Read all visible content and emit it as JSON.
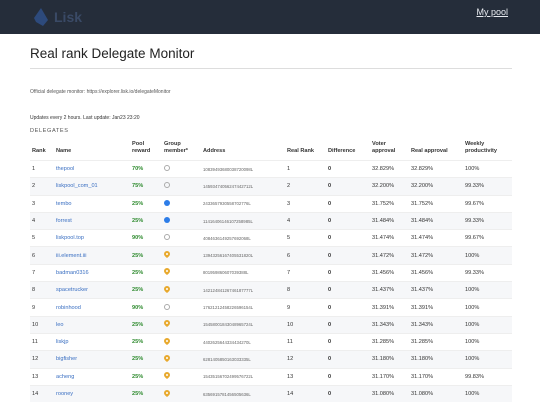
{
  "header": {
    "logo_text": "Lisk",
    "my_pool_label": "My pool"
  },
  "page": {
    "title": "Real rank Delegate Monitor",
    "official_text": "Official delegate monitor: https://explorer.lisk.io/delegateMonitor",
    "updates_text": "Updates every 2 hours. Last update: Jan23 23:20",
    "section_label": "DELEGATES"
  },
  "table": {
    "columns": [
      "Rank",
      "Name",
      "Pool reward",
      "Group member*",
      "Address",
      "Real Rank",
      "Difference",
      "Voter approval",
      "Real approval",
      "Weekly productivity"
    ],
    "rows": [
      {
        "rank": "1",
        "name": "thepool",
        "reward": "70%",
        "group": "empty",
        "address": "10839493680038720098L",
        "real_rank": "1",
        "difference": "0",
        "approval": "32.829%",
        "real_approval": "32.829%",
        "productivity": "100%"
      },
      {
        "rank": "2",
        "name": "liskpool_com_01",
        "reward": "75%",
        "group": "empty",
        "address": "14593474056247442712L",
        "real_rank": "2",
        "difference": "0",
        "approval": "32.200%",
        "real_approval": "32.200%",
        "productivity": "99.33%"
      },
      {
        "rank": "3",
        "name": "tembo",
        "reward": "25%",
        "group": "blue",
        "address": "2433657930558702776L",
        "real_rank": "3",
        "difference": "0",
        "approval": "31.752%",
        "real_approval": "31.752%",
        "productivity": "99.67%"
      },
      {
        "rank": "4",
        "name": "forrest",
        "reward": "25%",
        "group": "blue",
        "address": "11416406146107258985L",
        "real_rank": "4",
        "difference": "0",
        "approval": "31.484%",
        "real_approval": "31.484%",
        "productivity": "99.33%"
      },
      {
        "rank": "5",
        "name": "liskpool.top",
        "reward": "90%",
        "group": "empty",
        "address": "4084636149257692068L",
        "real_rank": "5",
        "difference": "0",
        "approval": "31.474%",
        "real_approval": "31.474%",
        "productivity": "99.67%"
      },
      {
        "rank": "6",
        "name": "iii.element.iii",
        "reward": "25%",
        "group": "pin",
        "address": "13943256167405531820L",
        "real_rank": "6",
        "difference": "0",
        "approval": "31.472%",
        "real_approval": "31.472%",
        "productivity": "100%"
      },
      {
        "rank": "7",
        "name": "badman0316",
        "reward": "25%",
        "group": "pin",
        "address": "801959860607039388L",
        "real_rank": "7",
        "difference": "0",
        "approval": "31.456%",
        "real_approval": "31.456%",
        "productivity": "99.33%"
      },
      {
        "rank": "8",
        "name": "spacetrucker",
        "reward": "25%",
        "group": "pin",
        "address": "14212484126746187777L",
        "real_rank": "8",
        "difference": "0",
        "approval": "31.437%",
        "real_approval": "31.437%",
        "productivity": "100%"
      },
      {
        "rank": "9",
        "name": "robinhood",
        "reward": "90%",
        "group": "empty",
        "address": "17621212458226596154L",
        "real_rank": "9",
        "difference": "0",
        "approval": "31.391%",
        "real_approval": "31.391%",
        "productivity": "100%"
      },
      {
        "rank": "10",
        "name": "leo",
        "reward": "25%",
        "group": "pin",
        "address": "15458001843048965724L",
        "real_rank": "10",
        "difference": "0",
        "approval": "31.343%",
        "real_approval": "31.343%",
        "productivity": "100%"
      },
      {
        "rank": "11",
        "name": "liskjp",
        "reward": "25%",
        "group": "pin",
        "address": "4402625644334434270L",
        "real_rank": "11",
        "difference": "0",
        "approval": "31.285%",
        "real_approval": "31.285%",
        "productivity": "100%"
      },
      {
        "rank": "12",
        "name": "bigfisher",
        "reward": "25%",
        "group": "pin",
        "address": "6281405850163033335L",
        "real_rank": "12",
        "difference": "0",
        "approval": "31.180%",
        "real_approval": "31.180%",
        "productivity": "100%"
      },
      {
        "rank": "13",
        "name": "acheng",
        "reward": "25%",
        "group": "pin",
        "address": "15435156702499576722L",
        "real_rank": "13",
        "difference": "0",
        "approval": "31.170%",
        "real_approval": "31.170%",
        "productivity": "99.83%"
      },
      {
        "rank": "14",
        "name": "rooney",
        "reward": "25%",
        "group": "pin",
        "address": "6356915781456505636L",
        "real_rank": "14",
        "difference": "0",
        "approval": "31.080%",
        "real_approval": "31.080%",
        "productivity": "100%"
      }
    ]
  },
  "colors": {
    "topbar": "#252d3a",
    "link": "#3a6fc2",
    "reward": "#2d8a2d",
    "member_blue": "#2d7de8",
    "member_pin": "#e8a92d"
  }
}
